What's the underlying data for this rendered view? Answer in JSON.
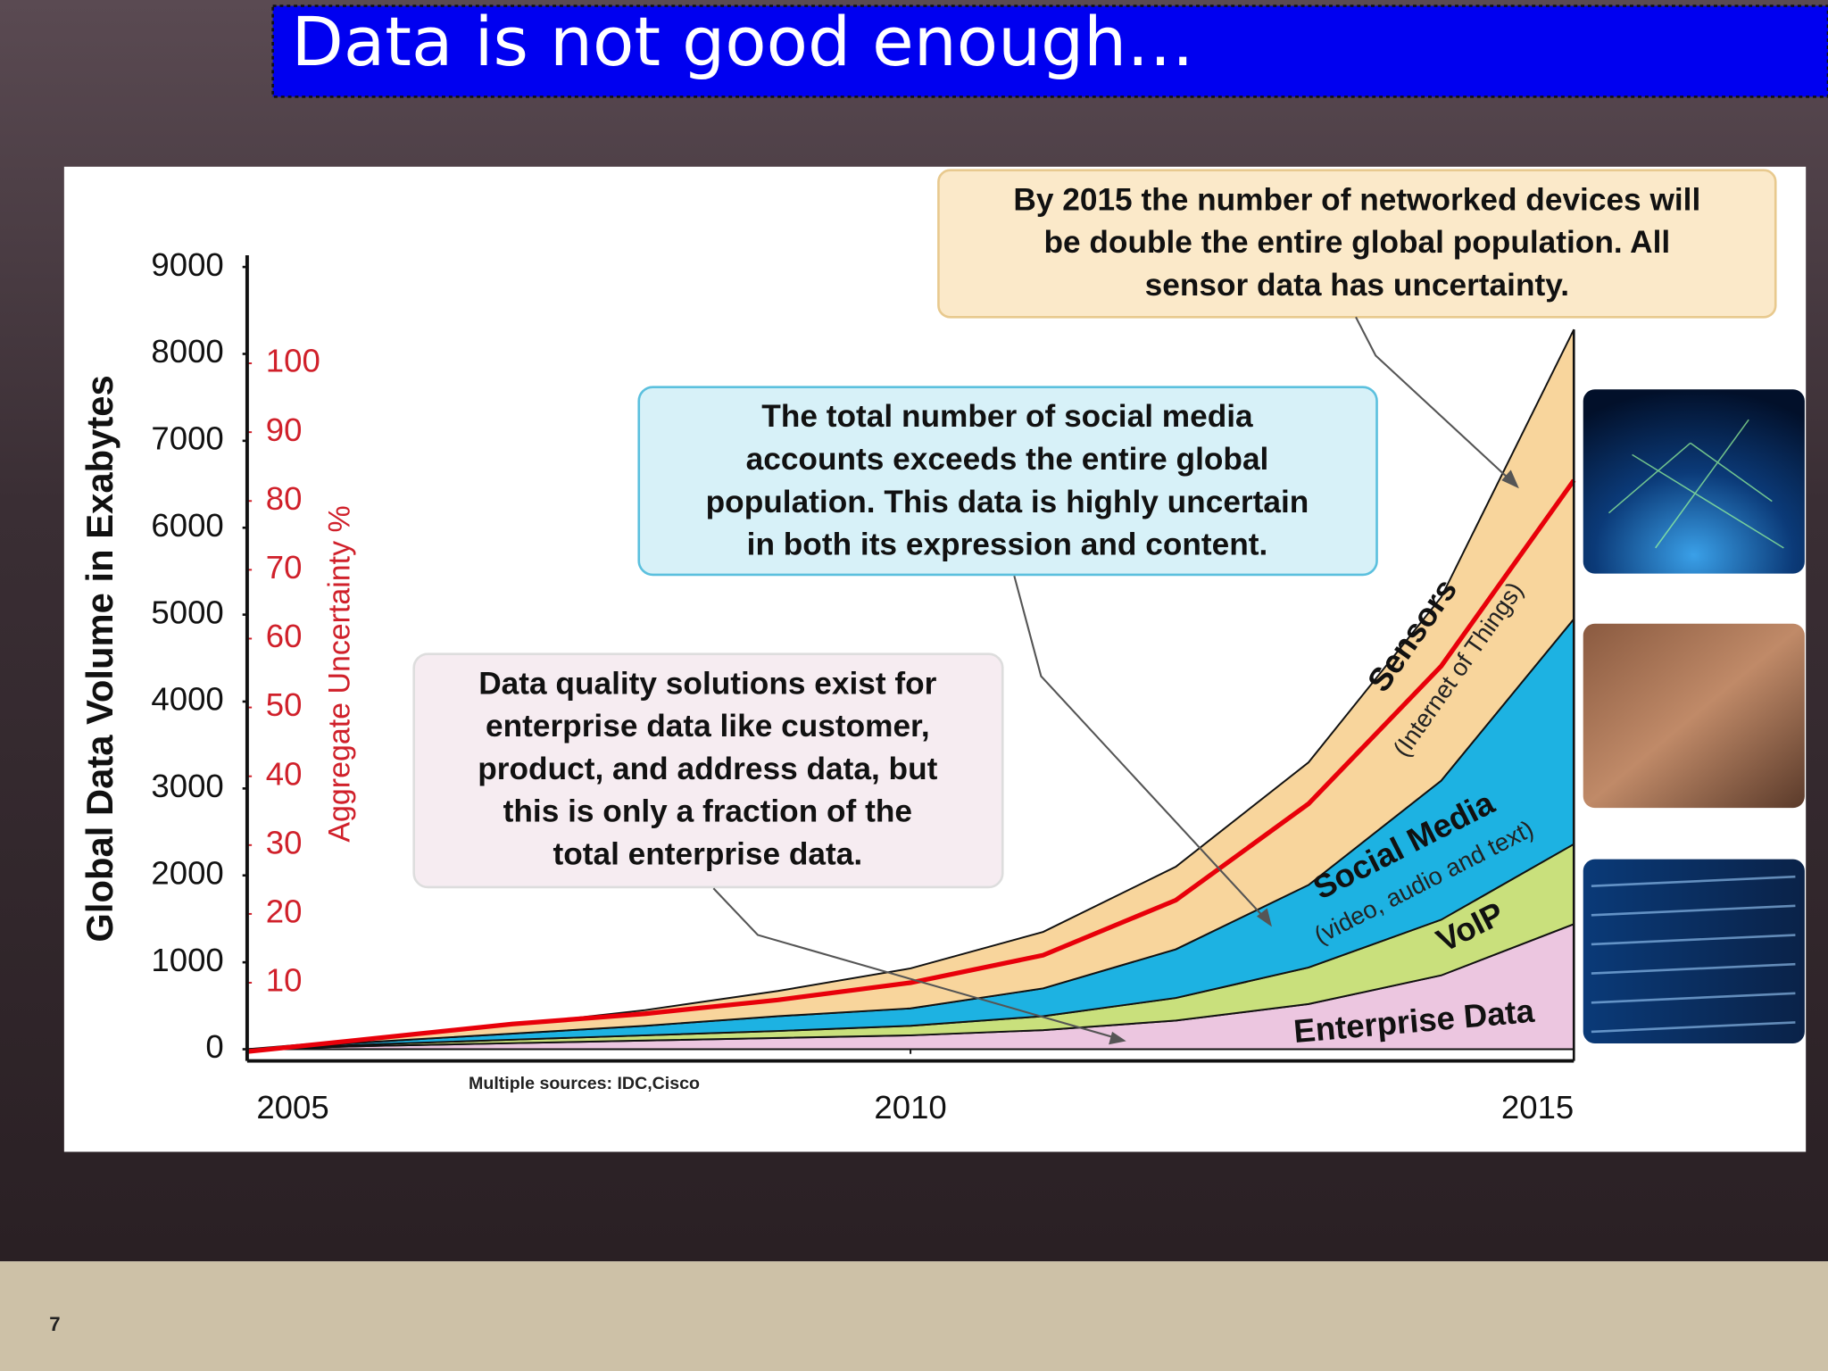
{
  "slide": {
    "title": "Data is not good enough…",
    "page_number": "7"
  },
  "chart_data": {
    "type": "stacked-area",
    "x": [
      2005,
      2006,
      2007,
      2008,
      2009,
      2010,
      2011,
      2012,
      2013,
      2014,
      2015
    ],
    "xlim": [
      2005,
      2015
    ],
    "xticks": [
      2005,
      2010,
      2015
    ],
    "ylim": [
      0,
      9000
    ],
    "yticks": [
      0,
      1000,
      2000,
      3000,
      4000,
      5000,
      6000,
      7000,
      8000,
      9000
    ],
    "y2lim": [
      0,
      114
    ],
    "y2ticks": [
      10,
      20,
      30,
      40,
      50,
      60,
      70,
      80,
      90,
      100
    ],
    "y_label": "Global Data Volume in Exabytes",
    "y2_label": "Aggregate Uncertainty %",
    "source": "Multiple sources: IDC,Cisco",
    "series": [
      {
        "name": "Enterprise Data",
        "color": "#ecc6e0",
        "values": [
          0,
          40,
          70,
          100,
          130,
          160,
          220,
          330,
          520,
          850,
          1440
        ]
      },
      {
        "name": "VoIP",
        "color": "#c9e07c",
        "values": [
          0,
          20,
          40,
          60,
          80,
          110,
          160,
          260,
          420,
          640,
          920
        ]
      },
      {
        "name": "Social Media",
        "note": "(video, audio and text)",
        "color": "#1db2e2",
        "values": [
          0,
          30,
          70,
          110,
          170,
          200,
          320,
          560,
          950,
          1600,
          2590
        ]
      },
      {
        "name": "Sensors",
        "note": "(Internet of Things)",
        "color": "#f8d59c",
        "values": [
          0,
          40,
          100,
          180,
          290,
          460,
          650,
          950,
          1410,
          2110,
          3330
        ]
      },
      {
        "color": "#e8000a",
        "axis": "y2",
        "values": [
          0,
          2,
          4,
          5.5,
          7.5,
          10,
          14,
          22,
          36,
          56,
          83
        ]
      }
    ],
    "annotations": [
      {
        "lines": [
          "By 2015 the number of networked devices will",
          "be double the entire global population. All",
          "sensor data has uncertainty."
        ]
      },
      {
        "lines": [
          "The total number of social media",
          "accounts exceeds the entire global",
          "population. This data is highly uncertain",
          "in both its expression and content."
        ]
      },
      {
        "lines": [
          "Data quality solutions exist for",
          "enterprise data like customer,",
          "product, and address data, but",
          "this is only a fraction of the",
          "total enterprise data."
        ]
      }
    ]
  }
}
